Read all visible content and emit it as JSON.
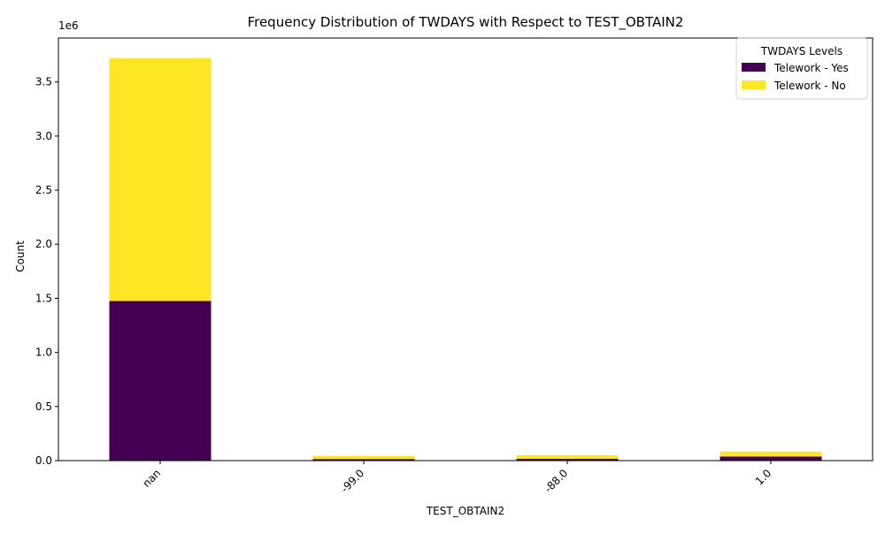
{
  "chart_data": {
    "type": "bar",
    "stacked": true,
    "title": "Frequency Distribution of TWDAYS with Respect to TEST_OBTAIN2",
    "xlabel": "TEST_OBTAIN2",
    "ylabel": "Count",
    "y_offset_label": "1e6",
    "categories": [
      "nan",
      "-99.0",
      "-88.0",
      "1.0"
    ],
    "series": [
      {
        "name": "Telework - Yes",
        "color": "#440154",
        "values": [
          1475000,
          15000,
          17000,
          38000
        ]
      },
      {
        "name": "Telework - No",
        "color": "#fde725",
        "values": [
          2245000,
          28000,
          34000,
          46000
        ]
      }
    ],
    "ylim": [
      0,
      3906000
    ],
    "yticks": [
      0,
      500000,
      1000000,
      1500000,
      2000000,
      2500000,
      3000000,
      3500000
    ],
    "ytick_labels": [
      "0.0",
      "0.5",
      "1.0",
      "1.5",
      "2.0",
      "2.5",
      "3.0",
      "3.5"
    ],
    "legend": {
      "title": "TWDAYS Levels",
      "placement": "top-right"
    },
    "grid": false
  }
}
